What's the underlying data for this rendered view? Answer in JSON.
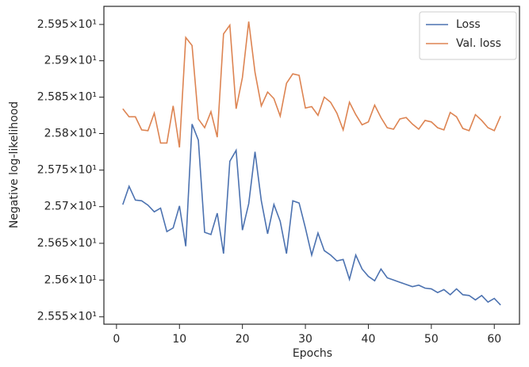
{
  "chart_data": {
    "type": "line",
    "xlabel": "Epochs",
    "ylabel": "Negative log-likelihood",
    "x": [
      1,
      2,
      3,
      4,
      5,
      6,
      7,
      8,
      9,
      10,
      11,
      12,
      13,
      14,
      15,
      16,
      17,
      18,
      19,
      20,
      21,
      22,
      23,
      24,
      25,
      26,
      27,
      28,
      29,
      30,
      31,
      32,
      33,
      34,
      35,
      36,
      37,
      38,
      39,
      40,
      41,
      42,
      43,
      44,
      45,
      46,
      47,
      48,
      49,
      50,
      51,
      52,
      53,
      54,
      55,
      56,
      57,
      58,
      59,
      60,
      61
    ],
    "series": [
      {
        "name": "Loss",
        "color": "#4c72b0",
        "values": [
          25.7028,
          25.7278,
          25.709,
          25.708,
          25.702,
          25.693,
          25.698,
          25.666,
          25.671,
          25.701,
          25.646,
          25.813,
          25.791,
          25.665,
          25.662,
          25.691,
          25.636,
          25.762,
          25.777,
          25.668,
          25.704,
          25.775,
          25.708,
          25.663,
          25.703,
          25.68,
          25.636,
          25.708,
          25.705,
          25.671,
          25.634,
          25.664,
          25.64,
          25.634,
          25.626,
          25.628,
          25.601,
          25.634,
          25.615,
          25.605,
          25.599,
          25.615,
          25.603,
          25.6,
          25.597,
          25.594,
          25.591,
          25.593,
          25.589,
          25.588,
          25.583,
          25.587,
          25.58,
          25.588,
          25.58,
          25.579,
          25.573,
          25.579,
          25.57,
          25.575,
          25.566
        ]
      },
      {
        "name": "Val. loss",
        "color": "#dd8452",
        "values": [
          25.834,
          25.823,
          25.823,
          25.805,
          25.804,
          25.828,
          25.787,
          25.787,
          25.838,
          25.781,
          25.932,
          25.921,
          25.82,
          25.808,
          25.83,
          25.795,
          25.937,
          25.949,
          25.834,
          25.877,
          25.954,
          25.884,
          25.838,
          25.857,
          25.848,
          25.824,
          25.869,
          25.882,
          25.88,
          25.835,
          25.837,
          25.825,
          25.85,
          25.843,
          25.828,
          25.805,
          25.843,
          25.826,
          25.812,
          25.816,
          25.839,
          25.822,
          25.808,
          25.806,
          25.82,
          25.822,
          25.813,
          25.806,
          25.818,
          25.816,
          25.808,
          25.805,
          25.829,
          25.823,
          25.807,
          25.804,
          25.826,
          25.818,
          25.808,
          25.804,
          25.824
        ]
      }
    ],
    "xlim": [
      -2,
      64
    ],
    "xticks": [
      0,
      10,
      20,
      30,
      40,
      50,
      60
    ],
    "ylim": [
      25.54,
      25.975
    ],
    "ylog": true,
    "yticks": [
      {
        "value": 25.55,
        "label": "2.555×10¹"
      },
      {
        "value": 25.6,
        "label": "2.56×10¹"
      },
      {
        "value": 25.65,
        "label": "2.565×10¹"
      },
      {
        "value": 25.7,
        "label": "2.57×10¹"
      },
      {
        "value": 25.75,
        "label": "2.575×10¹"
      },
      {
        "value": 25.8,
        "label": "2.58×10¹"
      },
      {
        "value": 25.85,
        "label": "2.585×10¹"
      },
      {
        "value": 25.9,
        "label": "2.59×10¹"
      },
      {
        "value": 25.95,
        "label": "2.595×10¹"
      }
    ],
    "grid": false,
    "legend": "upper right"
  }
}
